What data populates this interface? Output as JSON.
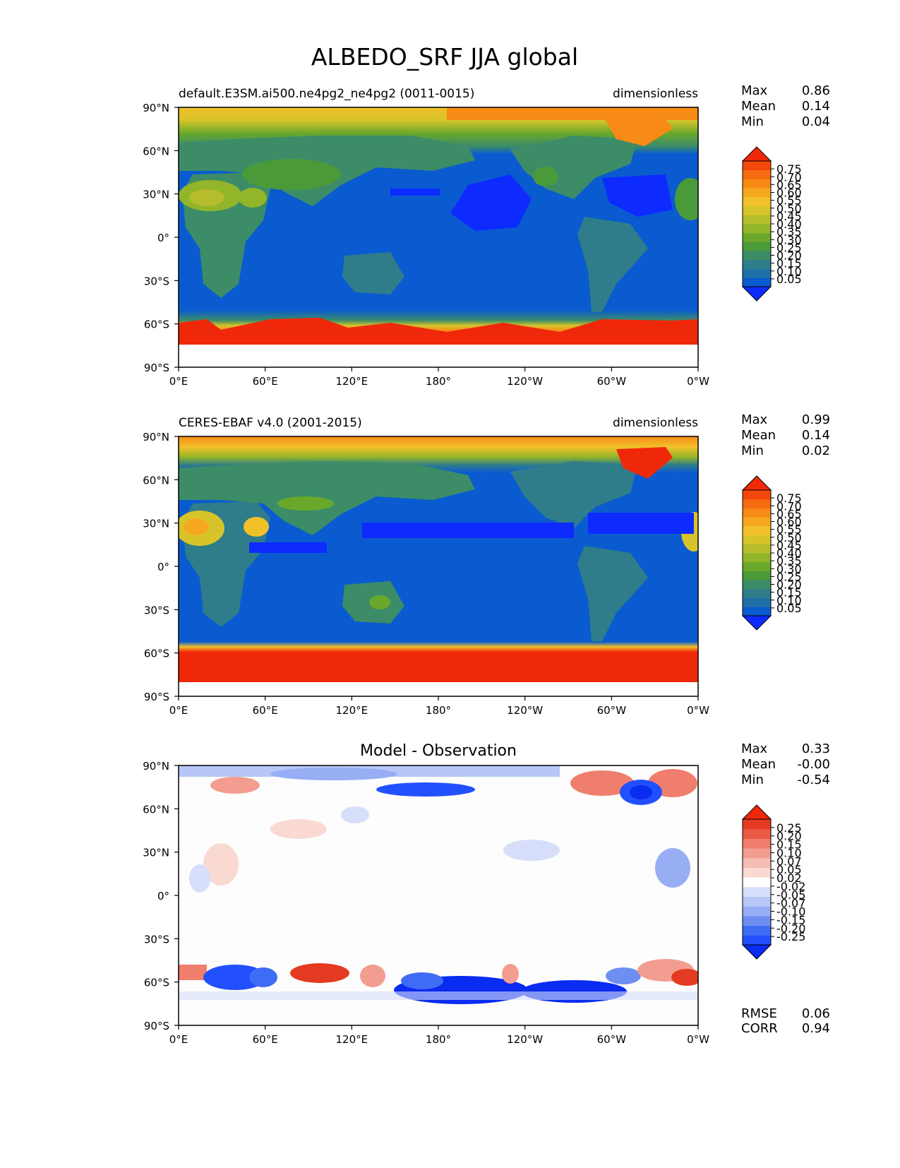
{
  "figure": {
    "title": "ALBEDO_SRF JJA global"
  },
  "axes": {
    "lat_labels": [
      "90°N",
      "60°N",
      "30°N",
      "0°",
      "30°S",
      "60°S",
      "90°S"
    ],
    "lon_labels": [
      "0°E",
      "60°E",
      "120°E",
      "180°",
      "120°W",
      "60°W",
      "0°W"
    ]
  },
  "panels": [
    {
      "left_title": "default.E3SM.ai500.ne4pg2_ne4pg2 (0011-0015)",
      "center_title": "",
      "units": "dimensionless",
      "stats": [
        {
          "label": "Max",
          "value": "0.86"
        },
        {
          "label": "Mean",
          "value": "0.14"
        },
        {
          "label": "Min",
          "value": "0.04"
        }
      ],
      "colorbar_ticks": [
        "0.75",
        "0.70",
        "0.65",
        "0.60",
        "0.55",
        "0.50",
        "0.45",
        "0.40",
        "0.35",
        "0.30",
        "0.25",
        "0.20",
        "0.15",
        "0.10",
        "0.05"
      ],
      "colormap": "sequential"
    },
    {
      "left_title": "CERES-EBAF v4.0 (2001-2015)",
      "center_title": "",
      "units": "dimensionless",
      "stats": [
        {
          "label": "Max",
          "value": "0.99"
        },
        {
          "label": "Mean",
          "value": "0.14"
        },
        {
          "label": "Min",
          "value": "0.02"
        }
      ],
      "colorbar_ticks": [
        "0.75",
        "0.70",
        "0.65",
        "0.60",
        "0.55",
        "0.50",
        "0.45",
        "0.40",
        "0.35",
        "0.30",
        "0.25",
        "0.20",
        "0.15",
        "0.10",
        "0.05"
      ],
      "colormap": "sequential"
    },
    {
      "left_title": "",
      "center_title": "Model - Observation",
      "units": "",
      "stats": [
        {
          "label": "Max",
          "value": "0.33"
        },
        {
          "label": "Mean",
          "value": "-0.00"
        },
        {
          "label": "Min",
          "value": "-0.54"
        }
      ],
      "colorbar_ticks": [
        "0.25",
        "0.20",
        "0.15",
        "0.10",
        "0.07",
        "0.05",
        "0.02",
        "-0.02",
        "-0.05",
        "-0.07",
        "-0.10",
        "-0.15",
        "-0.20",
        "-0.25"
      ],
      "colormap": "diverging",
      "extra_stats": [
        {
          "label": "RMSE",
          "value": "0.06"
        },
        {
          "label": "CORR",
          "value": "0.94"
        }
      ]
    }
  ],
  "colors": {
    "sequential": [
      "#0d2bff",
      "#0a5bd0",
      "#1f6fa8",
      "#2f7d8a",
      "#3c8c68",
      "#4b9a3a",
      "#69a82a",
      "#92b52a",
      "#b5bd2c",
      "#d6c42a",
      "#f2c12a",
      "#f5a81f",
      "#f78b16",
      "#f76b10",
      "#f4470b",
      "#f0280a"
    ],
    "diverging": [
      "#0a2bf0",
      "#2250ff",
      "#3f6cf5",
      "#6f8ef2",
      "#97aef5",
      "#b6c6f7",
      "#d6def9",
      "#ffffff",
      "#fbd9d3",
      "#f7bdb3",
      "#f39d90",
      "#ef7e6d",
      "#ea5a45",
      "#e53a22",
      "#f0280a"
    ]
  }
}
